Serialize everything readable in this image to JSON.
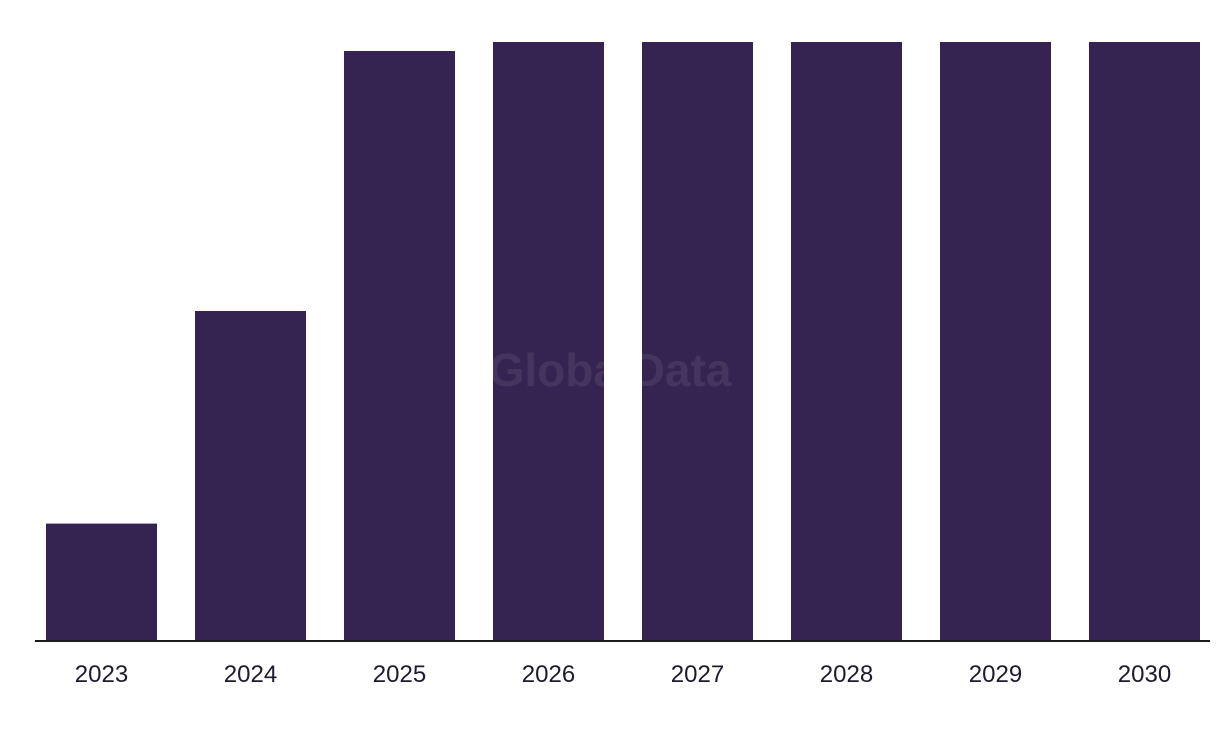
{
  "watermark": "GlobalData",
  "chart_data": {
    "type": "bar",
    "categories": [
      "2023",
      "2024",
      "2025",
      "2026",
      "2027",
      "2028",
      "2029",
      "2030"
    ],
    "values": [
      19.6,
      55.1,
      98.5,
      100,
      100,
      100,
      100,
      100
    ],
    "ylim": [
      0,
      100
    ],
    "title": "",
    "xlabel": "",
    "ylabel": "",
    "grid": false,
    "colors": {
      "bar": "#352451",
      "axis": "#1a1a1a",
      "text": "#1f1a2e"
    }
  }
}
